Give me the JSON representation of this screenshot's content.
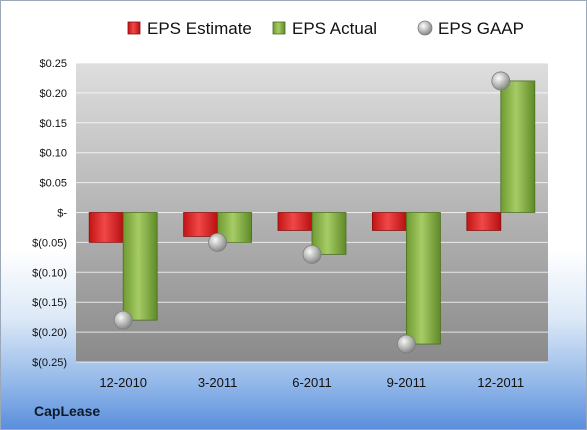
{
  "chart_data": {
    "type": "bar",
    "categories": [
      "12-2010",
      "3-2011",
      "6-2011",
      "9-2011",
      "12-2011"
    ],
    "series": [
      {
        "name": "EPS Estimate",
        "values": [
          -0.05,
          -0.04,
          -0.03,
          -0.03,
          -0.03
        ],
        "color": "#cc2020"
      },
      {
        "name": "EPS Actual",
        "values": [
          -0.18,
          -0.05,
          -0.07,
          -0.22,
          0.22
        ],
        "color": "#7aa83c"
      },
      {
        "name": "EPS GAAP",
        "values": [
          -0.18,
          -0.05,
          -0.07,
          -0.22,
          0.22
        ],
        "color": "#a9a9a9",
        "marker": "sphere"
      }
    ],
    "y_ticks": [
      {
        "value": 0.25,
        "label": "$0.25"
      },
      {
        "value": 0.2,
        "label": "$0.20"
      },
      {
        "value": 0.15,
        "label": "$0.15"
      },
      {
        "value": 0.1,
        "label": "$0.10"
      },
      {
        "value": 0.05,
        "label": "$0.05"
      },
      {
        "value": 0,
        "label": "$-"
      },
      {
        "value": -0.05,
        "label": "$(0.05)"
      },
      {
        "value": -0.1,
        "label": "$(0.10)"
      },
      {
        "value": -0.15,
        "label": "$(0.15)"
      },
      {
        "value": -0.2,
        "label": "$(0.20)"
      },
      {
        "value": -0.25,
        "label": "$(0.25)"
      }
    ],
    "ylim": [
      -0.25,
      0.25
    ],
    "grid": true,
    "legend_position": "top"
  },
  "footer": {
    "brand": "CapLease"
  }
}
